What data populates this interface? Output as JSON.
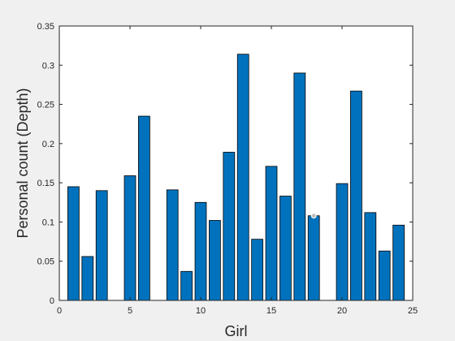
{
  "chart_data": {
    "type": "bar",
    "xlabel": "Girl",
    "ylabel": "Personal count (Depth)",
    "xlim": [
      0,
      25
    ],
    "ylim": [
      0,
      0.35
    ],
    "x_ticks": [
      0,
      5,
      10,
      15,
      20,
      25
    ],
    "y_ticks": [
      0,
      0.05,
      0.1,
      0.15,
      0.2,
      0.25,
      0.3,
      0.35
    ],
    "x_tick_labels": [
      "0",
      "5",
      "10",
      "15",
      "20",
      "25"
    ],
    "y_tick_labels": [
      "0",
      "0.05",
      "0.1",
      "0.15",
      "0.2",
      "0.25",
      "0.3",
      "0.35"
    ],
    "x": [
      1,
      2,
      3,
      4,
      5,
      6,
      7,
      8,
      9,
      10,
      11,
      12,
      13,
      14,
      15,
      16,
      17,
      18,
      19,
      20,
      21,
      22,
      23,
      24
    ],
    "values": [
      0.145,
      0.056,
      0.14,
      0,
      0.159,
      0.235,
      0,
      0.141,
      0.037,
      0.125,
      0.102,
      0.189,
      0.314,
      0.078,
      0.171,
      0.133,
      0.29,
      0.108,
      0,
      0.149,
      0.267,
      0.112,
      0.063,
      0.096
    ],
    "marker": {
      "x": 18,
      "y": 0.108
    },
    "bar_color": "#0072BD",
    "grid": false,
    "box": true
  }
}
